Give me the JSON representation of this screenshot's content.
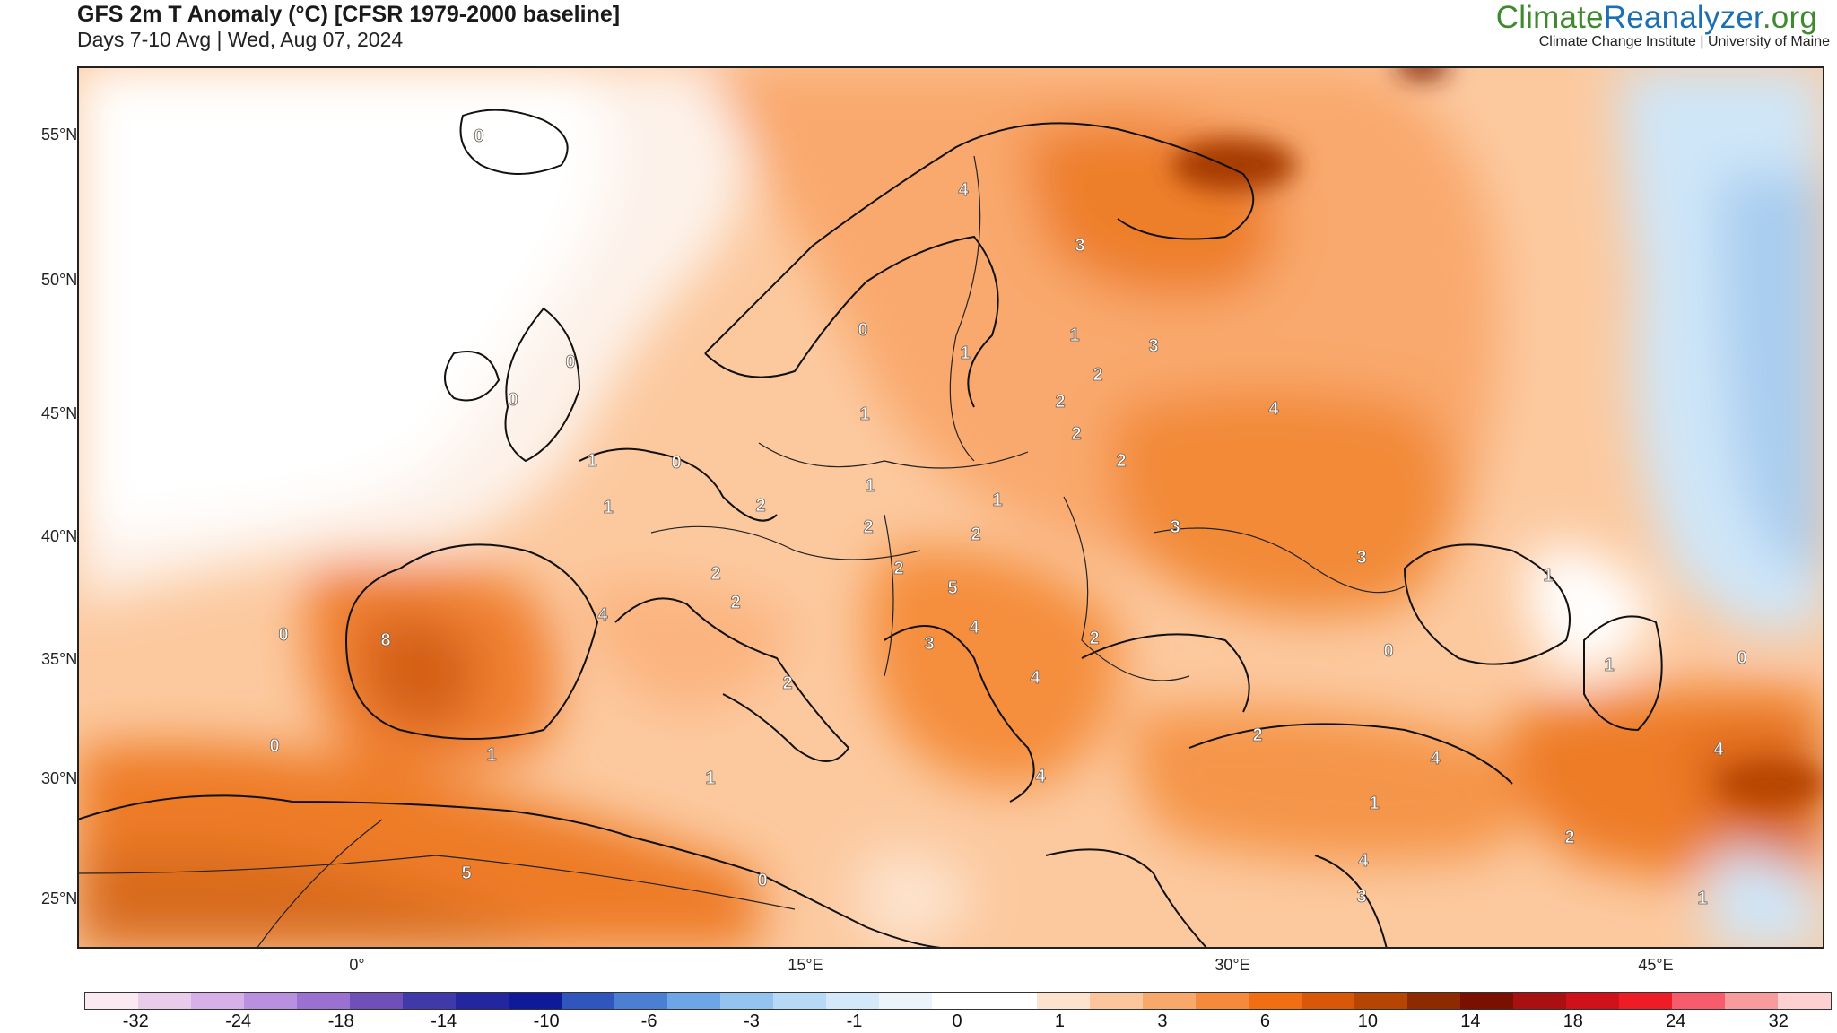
{
  "header": {
    "title": "GFS 2m T Anomaly (°C) [CFSR 1979-2000 baseline]",
    "subtitle": "Days 7-10 Avg | Wed, Aug 07, 2024",
    "brand_part1": "Climate",
    "brand_part2": "Reanalyzer",
    "brand_part3": ".org",
    "brand_sub": "Climate Change Institute | University of Maine"
  },
  "map": {
    "lat_labels": [
      "55°N",
      "50°N",
      "45°N",
      "40°N",
      "35°N",
      "30°N",
      "25°N"
    ],
    "lon_labels": [
      "0°",
      "15°E",
      "30°E",
      "45°E"
    ],
    "region_values": [
      {
        "region": "iceland",
        "value": "0"
      },
      {
        "region": "northern-norway",
        "value": "4"
      },
      {
        "region": "kola-karelia",
        "value": "3"
      },
      {
        "region": "southern-norway",
        "value": "0"
      },
      {
        "region": "sweden",
        "value": "1"
      },
      {
        "region": "finland-south",
        "value": "1"
      },
      {
        "region": "st-petersburg",
        "value": "3"
      },
      {
        "region": "scotland",
        "value": "0"
      },
      {
        "region": "ireland",
        "value": "0"
      },
      {
        "region": "baltics",
        "value": "2"
      },
      {
        "region": "denmark",
        "value": "1"
      },
      {
        "region": "latvia",
        "value": "2"
      },
      {
        "region": "western-russia",
        "value": "4"
      },
      {
        "region": "england",
        "value": "1"
      },
      {
        "region": "netherlands",
        "value": "0"
      },
      {
        "region": "lithuania",
        "value": "2"
      },
      {
        "region": "belarus",
        "value": "2"
      },
      {
        "region": "germany-north",
        "value": "1"
      },
      {
        "region": "france-north",
        "value": "1"
      },
      {
        "region": "germany",
        "value": "2"
      },
      {
        "region": "poland",
        "value": "1"
      },
      {
        "region": "czechia",
        "value": "2"
      },
      {
        "region": "slovakia",
        "value": "2"
      },
      {
        "region": "ukraine",
        "value": "3"
      },
      {
        "region": "volga",
        "value": "3"
      },
      {
        "region": "switzerland",
        "value": "2"
      },
      {
        "region": "austria",
        "value": "2"
      },
      {
        "region": "hungary",
        "value": "5"
      },
      {
        "region": "northern-italy",
        "value": "2"
      },
      {
        "region": "southern-france",
        "value": "4"
      },
      {
        "region": "bosnia",
        "value": "3"
      },
      {
        "region": "serbia",
        "value": "4"
      },
      {
        "region": "romania",
        "value": "2"
      },
      {
        "region": "portugal",
        "value": "0"
      },
      {
        "region": "spain",
        "value": "8"
      },
      {
        "region": "central-italy",
        "value": "2"
      },
      {
        "region": "bulgaria",
        "value": "4"
      },
      {
        "region": "caucasus",
        "value": "0"
      },
      {
        "region": "georgia",
        "value": "1"
      },
      {
        "region": "azerbaijan",
        "value": "0"
      },
      {
        "region": "morocco",
        "value": "0"
      },
      {
        "region": "algeria-north",
        "value": "1"
      },
      {
        "region": "turkey-west",
        "value": "2"
      },
      {
        "region": "turkey-east",
        "value": "4"
      },
      {
        "region": "tunisia",
        "value": "1"
      },
      {
        "region": "greece",
        "value": "4"
      },
      {
        "region": "iran-west",
        "value": "4"
      },
      {
        "region": "syria",
        "value": "1"
      },
      {
        "region": "algeria-south",
        "value": "5"
      },
      {
        "region": "iraq",
        "value": "2"
      },
      {
        "region": "libya",
        "value": "0"
      },
      {
        "region": "lebanon",
        "value": "4"
      },
      {
        "region": "israel",
        "value": "3"
      },
      {
        "region": "persian-gulf",
        "value": "1"
      },
      {
        "region": "caspian-north",
        "value": "1"
      }
    ]
  },
  "colorbar": {
    "colors": [
      "#fbe9f2",
      "#e8cce9",
      "#d6b0e6",
      "#b98fdf",
      "#9a70d1",
      "#6f50b8",
      "#3f3aa8",
      "#2426a0",
      "#0e1a98",
      "#2f56bd",
      "#4a7fd2",
      "#6ca6e6",
      "#93c4f0",
      "#b6d9f5",
      "#d3e8f8",
      "#ecf4fb",
      "#ffffff",
      "#ffffff",
      "#fde3cd",
      "#fbc69b",
      "#f8a86a",
      "#f58a3c",
      "#f26e13",
      "#d95708",
      "#b64403",
      "#8e2a00",
      "#7a1000",
      "#a81012",
      "#cf1219",
      "#ee1c24",
      "#f65c6b",
      "#f89b9d",
      "#fdd0d1"
    ],
    "labels": [
      "-32",
      "-24",
      "-18",
      "-14",
      "-10",
      "-6",
      "-3",
      "-1",
      "0",
      "1",
      "3",
      "6",
      "10",
      "14",
      "18",
      "24",
      "32"
    ]
  }
}
